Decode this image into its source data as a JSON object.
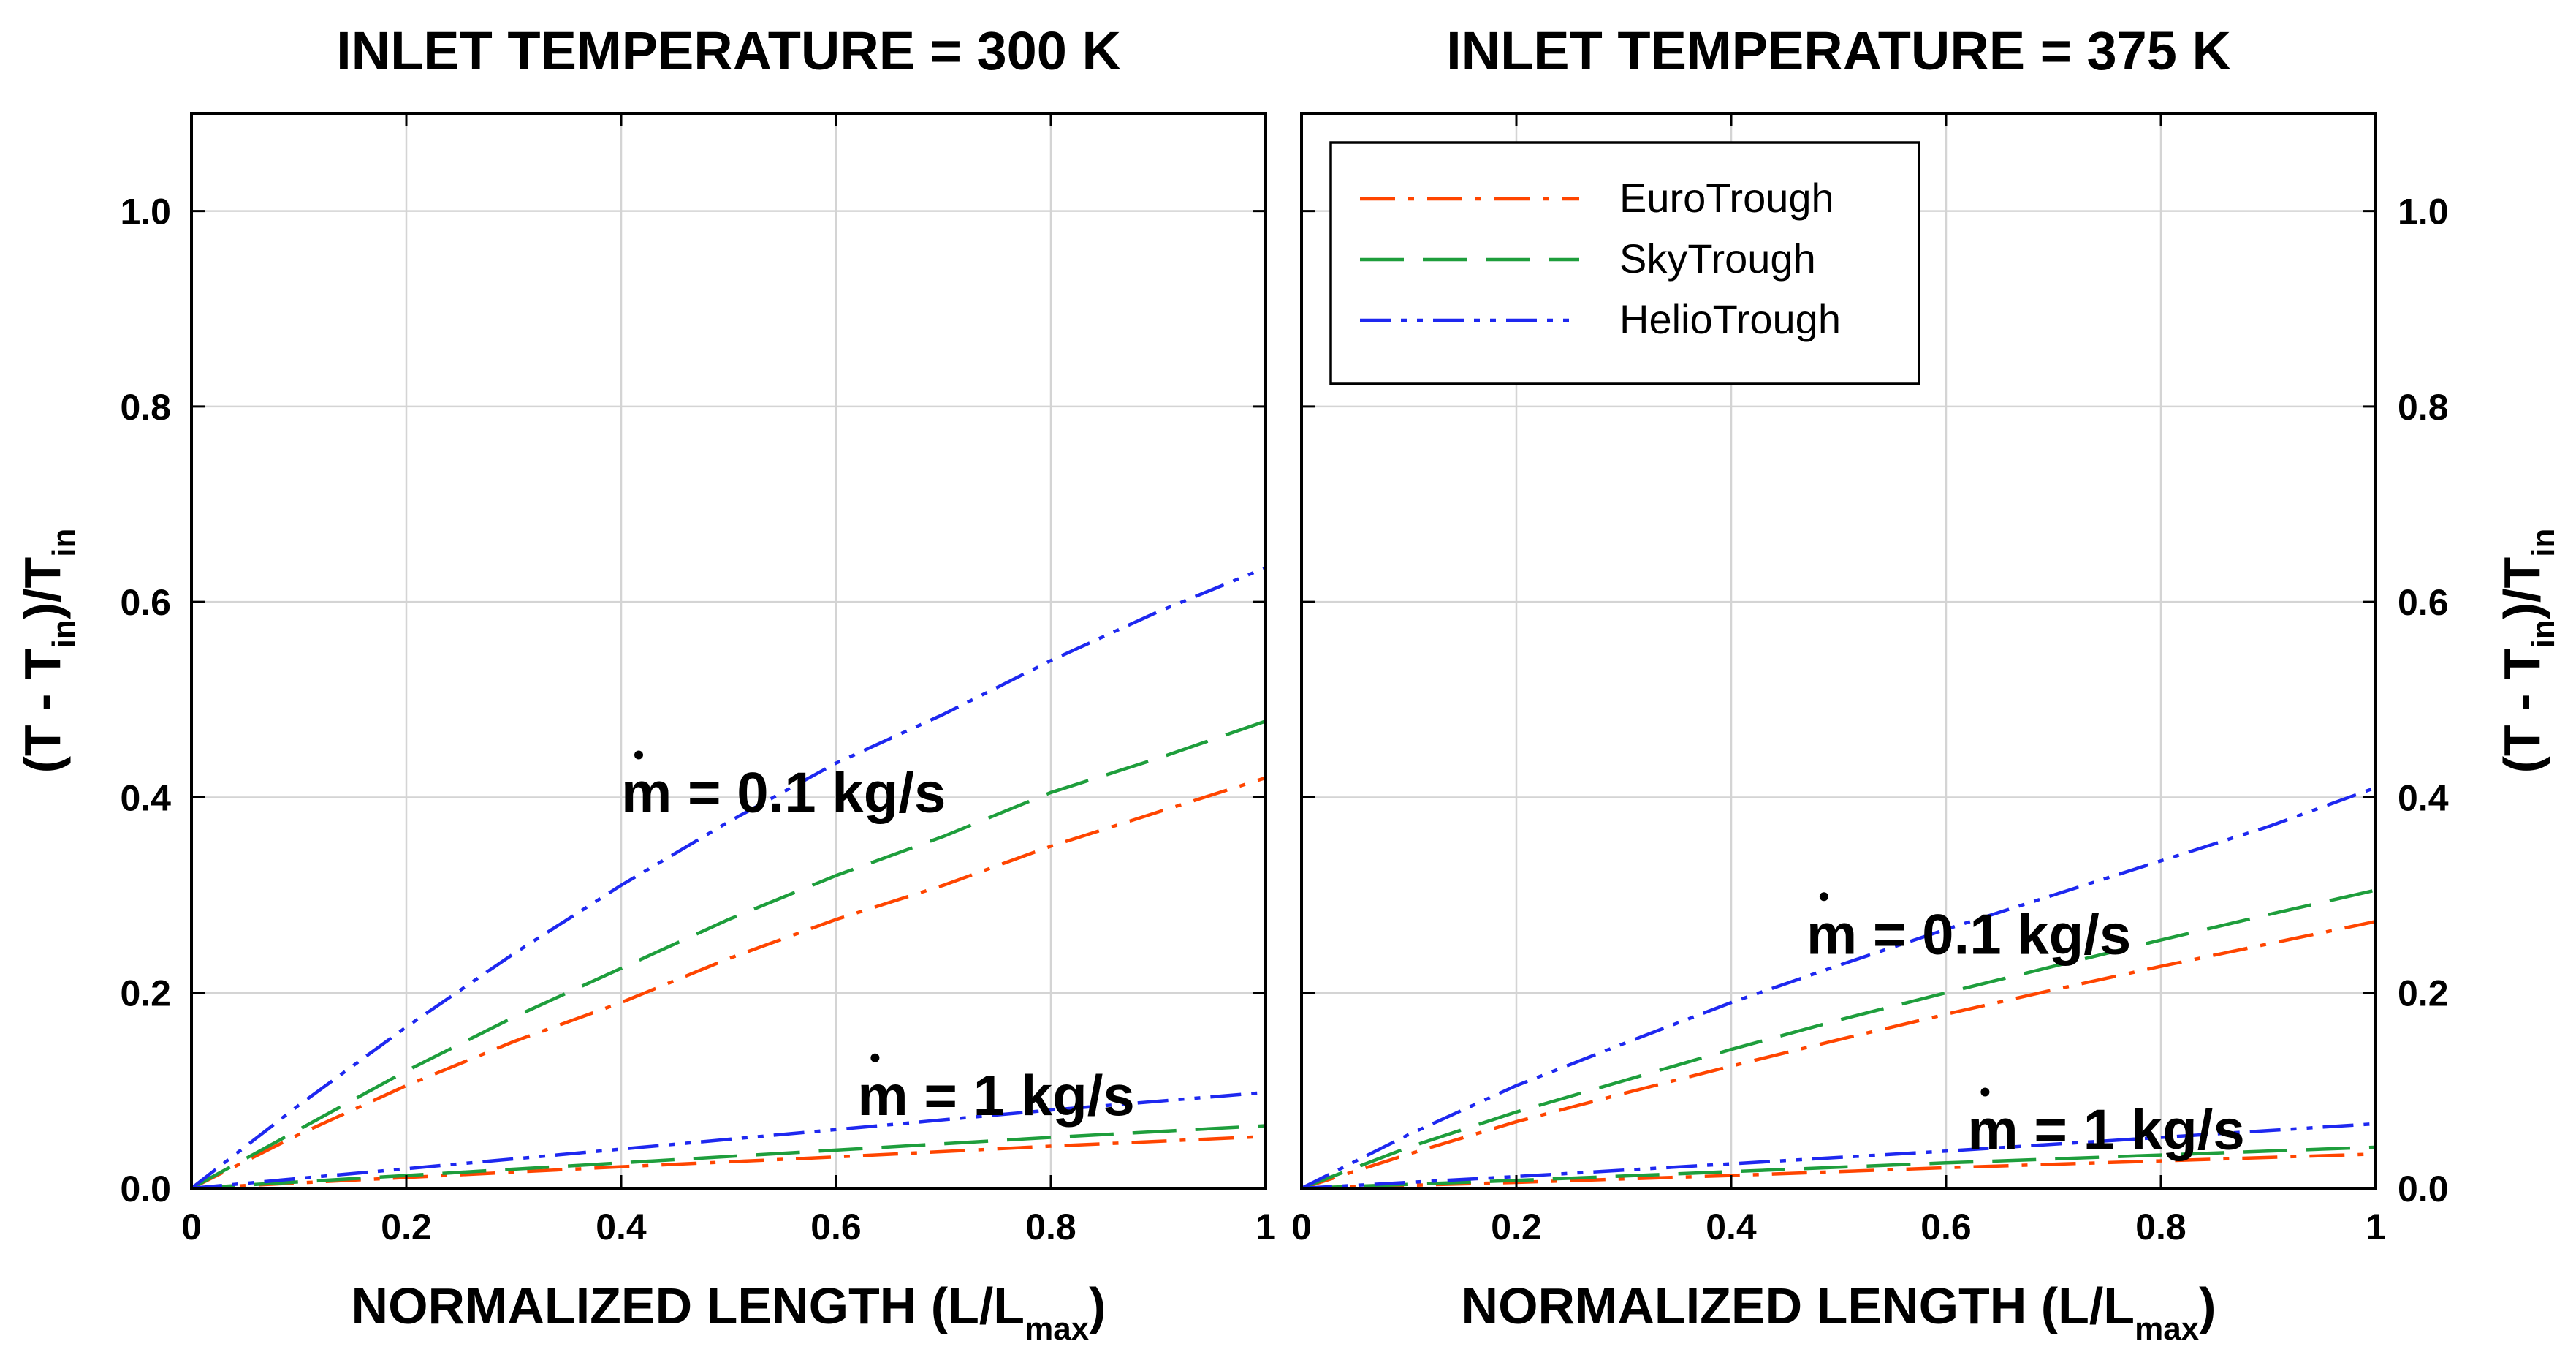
{
  "chart_data": [
    {
      "type": "line",
      "title": "INLET TEMPERATURE = 300 K",
      "xlabel": "NORMALIZED LENGTH (L/L",
      "xlabel_sub": "max",
      "xlabel_end": ")",
      "ylabel_parts": [
        "(T - T",
        "in",
        ")/T",
        "in"
      ],
      "ylabel_side": "left",
      "xlim": [
        0,
        1
      ],
      "ylim": [
        0,
        1.1
      ],
      "xticks": [
        0,
        0.2,
        0.4,
        0.6,
        0.8,
        1
      ],
      "xtick_labels": [
        "0",
        "0.2",
        "0.4",
        "0.6",
        "0.8",
        "1"
      ],
      "yticks": [
        0,
        0.2,
        0.4,
        0.6,
        0.8,
        1.0
      ],
      "ytick_labels": [
        "0.0",
        "0.2",
        "0.4",
        "0.6",
        "0.8",
        "1.0"
      ],
      "grid": true,
      "annotations": [
        {
          "text": "m = 0.1 kg/s",
          "x": 0.4,
          "y": 0.385
        },
        {
          "text": "m = 1 kg/s",
          "x": 0.62,
          "y": 0.075
        }
      ],
      "series": [
        {
          "name": "EuroTrough",
          "group": "0.1 kg/s",
          "color": "#ff4500",
          "dash": "dashdot",
          "x": [
            0,
            0.1,
            0.2,
            0.3,
            0.4,
            0.5,
            0.6,
            0.7,
            0.8,
            0.9,
            1.0
          ],
          "y": [
            0,
            0.055,
            0.105,
            0.15,
            0.19,
            0.235,
            0.275,
            0.31,
            0.35,
            0.385,
            0.42
          ]
        },
        {
          "name": "SkyTrough",
          "group": "0.1 kg/s",
          "color": "#1e9e3c",
          "dash": "dash",
          "x": [
            0,
            0.1,
            0.2,
            0.3,
            0.4,
            0.5,
            0.6,
            0.7,
            0.8,
            0.9,
            1.0
          ],
          "y": [
            0,
            0.06,
            0.12,
            0.175,
            0.225,
            0.275,
            0.32,
            0.36,
            0.405,
            0.44,
            0.478
          ]
        },
        {
          "name": "HelioTrough",
          "group": "0.1 kg/s",
          "color": "#1e28f0",
          "dash": "dashdotdot",
          "x": [
            0,
            0.1,
            0.2,
            0.3,
            0.4,
            0.5,
            0.6,
            0.7,
            0.8,
            0.9,
            1.0
          ],
          "y": [
            0,
            0.085,
            0.165,
            0.24,
            0.31,
            0.375,
            0.435,
            0.485,
            0.54,
            0.59,
            0.635
          ]
        },
        {
          "name": "EuroTrough",
          "group": "1 kg/s",
          "color": "#ff4500",
          "dash": "dashdot",
          "x": [
            0,
            0.2,
            0.4,
            0.6,
            0.8,
            1.0
          ],
          "y": [
            0,
            0.011,
            0.022,
            0.032,
            0.043,
            0.053
          ]
        },
        {
          "name": "SkyTrough",
          "group": "1 kg/s",
          "color": "#1e9e3c",
          "dash": "dash",
          "x": [
            0,
            0.2,
            0.4,
            0.6,
            0.8,
            1.0
          ],
          "y": [
            0,
            0.013,
            0.026,
            0.039,
            0.052,
            0.064
          ]
        },
        {
          "name": "HelioTrough",
          "group": "1 kg/s",
          "color": "#1e28f0",
          "dash": "dashdotdot",
          "x": [
            0,
            0.2,
            0.4,
            0.6,
            0.8,
            1.0
          ],
          "y": [
            0,
            0.02,
            0.04,
            0.06,
            0.08,
            0.098
          ]
        }
      ]
    },
    {
      "type": "line",
      "title": "INLET TEMPERATURE = 375 K",
      "xlabel": "NORMALIZED LENGTH (L/L",
      "xlabel_sub": "max",
      "xlabel_end": ")",
      "ylabel_parts": [
        "(T - T",
        "in",
        ")/T",
        "in"
      ],
      "ylabel_side": "right",
      "xlim": [
        0,
        1
      ],
      "ylim": [
        0,
        1.1
      ],
      "xticks": [
        0,
        0.2,
        0.4,
        0.6,
        0.8,
        1
      ],
      "xtick_labels": [
        "0",
        "0.2",
        "0.4",
        "0.6",
        "0.8",
        "1"
      ],
      "yticks": [
        0,
        0.2,
        0.4,
        0.6,
        0.8,
        1.0
      ],
      "ytick_labels": [
        "0.0",
        "0.2",
        "0.4",
        "0.6",
        "0.8",
        "1.0"
      ],
      "grid": true,
      "legend": {
        "position": "top-left",
        "entries": [
          {
            "label": "EuroTrough",
            "color": "#ff4500",
            "dash": "dashdot"
          },
          {
            "label": "SkyTrough",
            "color": "#1e9e3c",
            "dash": "dash"
          },
          {
            "label": "HelioTrough",
            "color": "#1e28f0",
            "dash": "dashdotdot"
          }
        ]
      },
      "annotations": [
        {
          "text": "m = 0.1 kg/s",
          "x": 0.47,
          "y": 0.24
        },
        {
          "text": "m = 1 kg/s",
          "x": 0.62,
          "y": 0.04
        }
      ],
      "series": [
        {
          "name": "EuroTrough",
          "group": "0.1 kg/s",
          "color": "#ff4500",
          "dash": "dashdot",
          "x": [
            0,
            0.1,
            0.2,
            0.3,
            0.4,
            0.5,
            0.6,
            0.7,
            0.8,
            0.9,
            1.0
          ],
          "y": [
            0,
            0.035,
            0.068,
            0.097,
            0.125,
            0.152,
            0.178,
            0.203,
            0.227,
            0.25,
            0.273
          ]
        },
        {
          "name": "SkyTrough",
          "group": "0.1 kg/s",
          "color": "#1e9e3c",
          "dash": "dash",
          "x": [
            0,
            0.1,
            0.2,
            0.3,
            0.4,
            0.5,
            0.6,
            0.7,
            0.8,
            0.9,
            1.0
          ],
          "y": [
            0,
            0.042,
            0.078,
            0.11,
            0.142,
            0.172,
            0.2,
            0.227,
            0.254,
            0.28,
            0.305
          ]
        },
        {
          "name": "HelioTrough",
          "group": "0.1 kg/s",
          "color": "#1e28f0",
          "dash": "dashdotdot",
          "x": [
            0,
            0.1,
            0.2,
            0.3,
            0.4,
            0.5,
            0.6,
            0.7,
            0.8,
            0.9,
            1.0
          ],
          "y": [
            0,
            0.055,
            0.105,
            0.148,
            0.19,
            0.228,
            0.265,
            0.3,
            0.335,
            0.37,
            0.41
          ]
        },
        {
          "name": "EuroTrough",
          "group": "1 kg/s",
          "color": "#ff4500",
          "dash": "dashdot",
          "x": [
            0,
            0.2,
            0.4,
            0.6,
            0.8,
            1.0
          ],
          "y": [
            0,
            0.006,
            0.013,
            0.021,
            0.028,
            0.035
          ]
        },
        {
          "name": "SkyTrough",
          "group": "1 kg/s",
          "color": "#1e9e3c",
          "dash": "dash",
          "x": [
            0,
            0.2,
            0.4,
            0.6,
            0.8,
            1.0
          ],
          "y": [
            0,
            0.008,
            0.017,
            0.026,
            0.034,
            0.042
          ]
        },
        {
          "name": "HelioTrough",
          "group": "1 kg/s",
          "color": "#1e28f0",
          "dash": "dashdotdot",
          "x": [
            0,
            0.2,
            0.4,
            0.6,
            0.8,
            1.0
          ],
          "y": [
            0,
            0.012,
            0.025,
            0.038,
            0.052,
            0.066
          ]
        }
      ]
    }
  ]
}
